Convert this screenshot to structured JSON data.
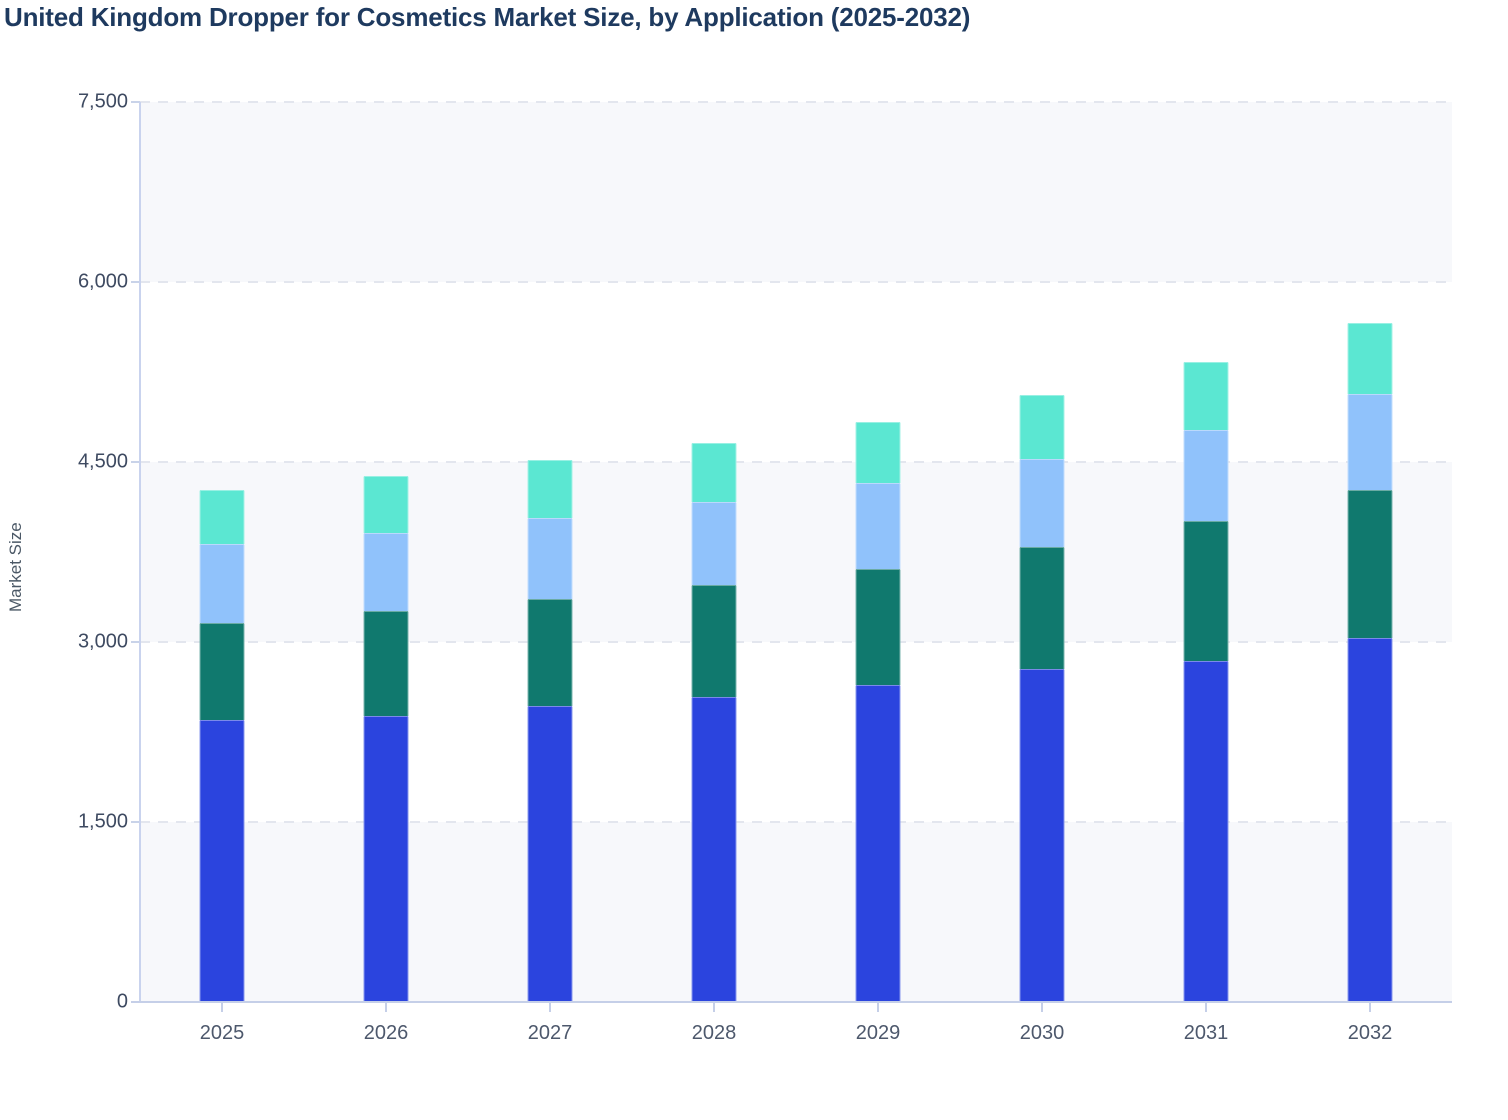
{
  "title": "United Kingdom Dropper for Cosmetics Market Size, by Application (2025-2032)",
  "chart_data": {
    "type": "bar",
    "stacked": true,
    "title": "United Kingdom Dropper for Cosmetics Market Size, by Application (2025-2032)",
    "xlabel": "",
    "ylabel": "Market Size",
    "categories": [
      "2025",
      "2026",
      "2027",
      "2028",
      "2029",
      "2030",
      "2031",
      "2032"
    ],
    "series": [
      {
        "name": "series_1_bottom",
        "color": "#2b44de",
        "values": [
          2350,
          2385,
          2465,
          2545,
          2640,
          2775,
          2845,
          3030
        ]
      },
      {
        "name": "series_2",
        "color": "#10796e",
        "values": [
          810,
          870,
          890,
          930,
          970,
          1015,
          1165,
          1240
        ]
      },
      {
        "name": "series_3",
        "color": "#90c2fb",
        "values": [
          655,
          655,
          675,
          695,
          715,
          735,
          760,
          795
        ]
      },
      {
        "name": "series_4_top",
        "color": "#5be7d2",
        "values": [
          450,
          470,
          485,
          490,
          505,
          530,
          560,
          595
        ]
      }
    ],
    "stack_totals": [
      4265,
      4380,
      4515,
      4660,
      4830,
      5055,
      5330,
      5660
    ],
    "ylim": [
      0,
      7500
    ],
    "yticks": [
      0,
      1500,
      3000,
      4500,
      6000,
      7500
    ],
    "ytick_labels": [
      "0",
      "1,500",
      "3,000",
      "4,500",
      "6,000",
      "7,500"
    ],
    "grid": "horizontal dashed gridlines at each y tick",
    "plot_bands": "alternating light bands: 6000-7500, 3000-4500, 0-1500",
    "legend": "none"
  },
  "style_colors": {
    "title_text": "#1e3a5f",
    "axis_text": "#3e4a61",
    "band_fill": "#f7f8fb",
    "gridline": "#e3e6ee",
    "axis_line": "#c9d3ee"
  }
}
